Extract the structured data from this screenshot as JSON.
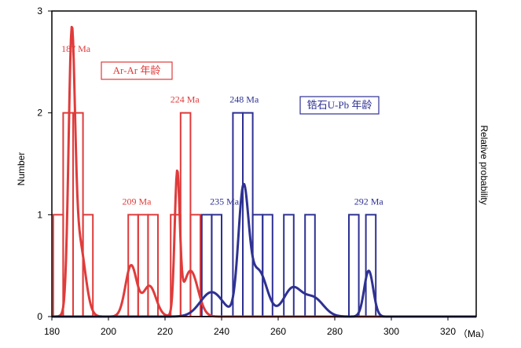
{
  "chart_data": {
    "type": "bar",
    "title": "",
    "xlabel": "",
    "x_unit": "（Ma）",
    "ylabel": "Number",
    "y2label": "Relative probability",
    "xlim": [
      180,
      330
    ],
    "ylim": [
      0,
      3
    ],
    "x_ticks": [
      "180",
      "200",
      "220",
      "240",
      "260",
      "280",
      "300",
      "320"
    ],
    "y_ticks": [
      "0",
      "1",
      "2",
      "3"
    ],
    "colors": {
      "ar": "#e03b3b",
      "zircon": "#2e3192",
      "axis": "#000000"
    },
    "series": [
      {
        "name": "Ar-Ar 年龄",
        "bin_width": 3.5,
        "histogram": [
          {
            "start": 180.5,
            "count": 1
          },
          {
            "start": 184.0,
            "count": 2
          },
          {
            "start": 187.5,
            "count": 2
          },
          {
            "start": 191.0,
            "count": 1
          },
          {
            "start": 207.0,
            "count": 1
          },
          {
            "start": 210.5,
            "count": 1
          },
          {
            "start": 214.0,
            "count": 1
          },
          {
            "start": 222.0,
            "count": 1
          },
          {
            "start": 225.5,
            "count": 2
          },
          {
            "start": 229.0,
            "count": 1
          }
        ],
        "curve_peaks": [
          {
            "center": 187,
            "height": 2.45,
            "sigma": 1.1
          },
          {
            "center": 189.5,
            "height": 0.75,
            "sigma": 2.2
          },
          {
            "center": 208,
            "height": 0.5,
            "sigma": 2.0
          },
          {
            "center": 214.5,
            "height": 0.3,
            "sigma": 2.3
          },
          {
            "center": 224.3,
            "height": 1.35,
            "sigma": 0.9
          },
          {
            "center": 229,
            "height": 0.45,
            "sigma": 2.6
          }
        ]
      },
      {
        "name": "锆石U-Pb 年龄",
        "bin_width": 3.5,
        "histogram": [
          {
            "start": 233.0,
            "count": 1
          },
          {
            "start": 236.5,
            "count": 1
          },
          {
            "start": 244.0,
            "count": 2
          },
          {
            "start": 247.5,
            "count": 2
          },
          {
            "start": 251.0,
            "count": 1
          },
          {
            "start": 254.5,
            "count": 1
          },
          {
            "start": 262.0,
            "count": 1
          },
          {
            "start": 269.5,
            "count": 1
          },
          {
            "start": 285.0,
            "count": 1
          },
          {
            "start": 291.0,
            "count": 1
          }
        ],
        "curve_peaks": [
          {
            "center": 236.5,
            "height": 0.24,
            "sigma": 4.0
          },
          {
            "center": 247.7,
            "height": 1.2,
            "sigma": 1.8
          },
          {
            "center": 253,
            "height": 0.45,
            "sigma": 3.0
          },
          {
            "center": 265,
            "height": 0.27,
            "sigma": 3.2
          },
          {
            "center": 272.5,
            "height": 0.18,
            "sigma": 3.5
          },
          {
            "center": 292,
            "height": 0.45,
            "sigma": 1.6
          }
        ]
      }
    ],
    "annotations": [
      {
        "text": "187 Ma",
        "x": 188.5,
        "y": 2.6,
        "color": "ar"
      },
      {
        "text": "209 Ma",
        "x": 210,
        "y": 1.1,
        "color": "ar"
      },
      {
        "text": "224 Ma",
        "x": 227,
        "y": 2.1,
        "color": "ar"
      },
      {
        "text": "235 Ma",
        "x": 241,
        "y": 1.1,
        "color": "zircon"
      },
      {
        "text": "248 Ma",
        "x": 248,
        "y": 2.1,
        "color": "zircon"
      },
      {
        "text": "292 Ma",
        "x": 292,
        "y": 1.1,
        "color": "zircon"
      }
    ],
    "legend": [
      {
        "text": "Ar-Ar 年龄",
        "color": "ar",
        "placement": "upper-left"
      },
      {
        "text": "锆石U-Pb 年龄",
        "color": "zircon",
        "placement": "upper-right"
      }
    ]
  }
}
